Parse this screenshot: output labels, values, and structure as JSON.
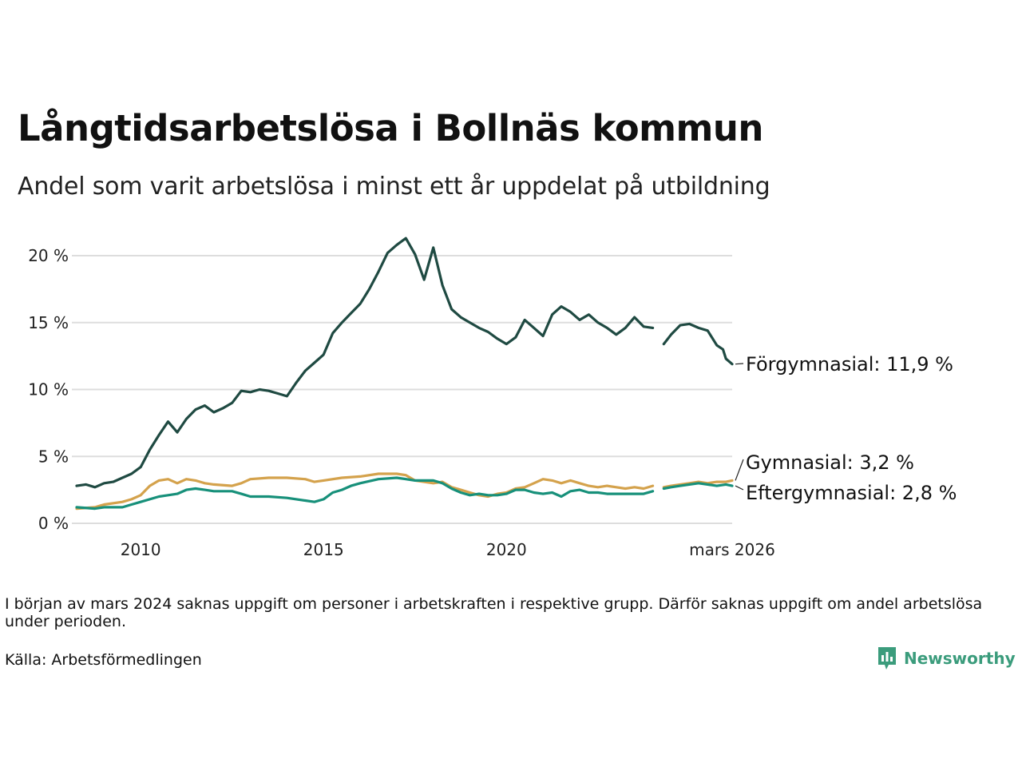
{
  "title": "Långtidsarbetslösa i Bollnäs kommun",
  "subtitle": "Andel som varit arbetslösa i minst ett år uppdelat på utbildning",
  "note": "I början av mars 2024 saknas uppgift om personer i arbetskraften i respektive grupp. Därför saknas uppgift om andel arbetslösa under perioden.",
  "source": "Källa: Arbetsförmedlingen",
  "brand": "Newsworthy",
  "colors": {
    "forgymnasial": "#1f4a42",
    "gymnasial": "#d4a24c",
    "eftergymnasial": "#17907a",
    "grid": "#dddddd",
    "brand": "#3b9c7c"
  },
  "chart_data": {
    "type": "line",
    "title": "Långtidsarbetslösa i Bollnäs kommun",
    "ylabel": "",
    "xlabel": "",
    "xlim": [
      2008.25,
      2026.17
    ],
    "ylim": [
      0,
      22
    ],
    "y_ticks": [
      0,
      5,
      10,
      15,
      20
    ],
    "y_tick_labels": [
      "0 %",
      "5 %",
      "10 %",
      "15 %",
      "20 %"
    ],
    "x_ticks": [
      2010,
      2015,
      2020,
      2026.17
    ],
    "x_tick_labels": [
      "2010",
      "2015",
      "2020",
      "mars 2026"
    ],
    "gap": [
      2024.0,
      2024.3
    ],
    "series": [
      {
        "key": "forgymnasial",
        "name": "Förgymnasial",
        "end_label": "Förgymnasial: 11,9 %",
        "last_value": 11.9,
        "points": [
          [
            2008.25,
            2.8
          ],
          [
            2008.5,
            2.9
          ],
          [
            2008.75,
            2.7
          ],
          [
            2009.0,
            3.0
          ],
          [
            2009.25,
            3.1
          ],
          [
            2009.5,
            3.4
          ],
          [
            2009.75,
            3.7
          ],
          [
            2010.0,
            4.2
          ],
          [
            2010.25,
            5.5
          ],
          [
            2010.5,
            6.6
          ],
          [
            2010.75,
            7.6
          ],
          [
            2011.0,
            6.8
          ],
          [
            2011.25,
            7.8
          ],
          [
            2011.5,
            8.5
          ],
          [
            2011.75,
            8.8
          ],
          [
            2012.0,
            8.3
          ],
          [
            2012.25,
            8.6
          ],
          [
            2012.5,
            9.0
          ],
          [
            2012.75,
            9.9
          ],
          [
            2013.0,
            9.8
          ],
          [
            2013.25,
            10.0
          ],
          [
            2013.5,
            9.9
          ],
          [
            2013.75,
            9.7
          ],
          [
            2014.0,
            9.5
          ],
          [
            2014.25,
            10.5
          ],
          [
            2014.5,
            11.4
          ],
          [
            2014.75,
            12.0
          ],
          [
            2015.0,
            12.6
          ],
          [
            2015.25,
            14.2
          ],
          [
            2015.5,
            15.0
          ],
          [
            2015.75,
            15.7
          ],
          [
            2016.0,
            16.4
          ],
          [
            2016.25,
            17.5
          ],
          [
            2016.5,
            18.8
          ],
          [
            2016.75,
            20.2
          ],
          [
            2017.0,
            20.8
          ],
          [
            2017.25,
            21.3
          ],
          [
            2017.5,
            20.1
          ],
          [
            2017.75,
            18.2
          ],
          [
            2018.0,
            20.6
          ],
          [
            2018.25,
            17.8
          ],
          [
            2018.5,
            16.0
          ],
          [
            2018.75,
            15.4
          ],
          [
            2019.0,
            15.0
          ],
          [
            2019.25,
            14.6
          ],
          [
            2019.5,
            14.3
          ],
          [
            2019.75,
            13.8
          ],
          [
            2020.0,
            13.4
          ],
          [
            2020.25,
            13.9
          ],
          [
            2020.5,
            15.2
          ],
          [
            2020.75,
            14.6
          ],
          [
            2021.0,
            14.0
          ],
          [
            2021.25,
            15.6
          ],
          [
            2021.5,
            16.2
          ],
          [
            2021.75,
            15.8
          ],
          [
            2022.0,
            15.2
          ],
          [
            2022.25,
            15.6
          ],
          [
            2022.5,
            15.0
          ],
          [
            2022.75,
            14.6
          ],
          [
            2023.0,
            14.1
          ],
          [
            2023.25,
            14.6
          ],
          [
            2023.5,
            15.4
          ],
          [
            2023.75,
            14.7
          ],
          [
            2024.0,
            14.6
          ],
          [
            2024.3,
            13.4
          ],
          [
            2024.5,
            14.1
          ],
          [
            2024.75,
            14.8
          ],
          [
            2025.0,
            14.9
          ],
          [
            2025.25,
            14.6
          ],
          [
            2025.5,
            14.4
          ],
          [
            2025.75,
            13.3
          ],
          [
            2025.92,
            13.0
          ],
          [
            2026.0,
            12.3
          ],
          [
            2026.17,
            11.9
          ]
        ]
      },
      {
        "key": "gymnasial",
        "name": "Gymnasial",
        "end_label": "Gymnasial:  3,2 %",
        "last_value": 3.2,
        "points": [
          [
            2008.25,
            1.1
          ],
          [
            2008.75,
            1.2
          ],
          [
            2009.0,
            1.4
          ],
          [
            2009.5,
            1.6
          ],
          [
            2009.75,
            1.8
          ],
          [
            2010.0,
            2.1
          ],
          [
            2010.25,
            2.8
          ],
          [
            2010.5,
            3.2
          ],
          [
            2010.75,
            3.3
          ],
          [
            2011.0,
            3.0
          ],
          [
            2011.25,
            3.3
          ],
          [
            2011.5,
            3.2
          ],
          [
            2011.75,
            3.0
          ],
          [
            2012.0,
            2.9
          ],
          [
            2012.5,
            2.8
          ],
          [
            2012.75,
            3.0
          ],
          [
            2013.0,
            3.3
          ],
          [
            2013.5,
            3.4
          ],
          [
            2014.0,
            3.4
          ],
          [
            2014.5,
            3.3
          ],
          [
            2014.75,
            3.1
          ],
          [
            2015.0,
            3.2
          ],
          [
            2015.5,
            3.4
          ],
          [
            2016.0,
            3.5
          ],
          [
            2016.5,
            3.7
          ],
          [
            2017.0,
            3.7
          ],
          [
            2017.25,
            3.6
          ],
          [
            2017.5,
            3.2
          ],
          [
            2018.0,
            3.0
          ],
          [
            2018.25,
            3.1
          ],
          [
            2018.5,
            2.7
          ],
          [
            2018.75,
            2.5
          ],
          [
            2019.0,
            2.3
          ],
          [
            2019.25,
            2.1
          ],
          [
            2019.5,
            2.0
          ],
          [
            2019.75,
            2.2
          ],
          [
            2020.0,
            2.3
          ],
          [
            2020.25,
            2.6
          ],
          [
            2020.5,
            2.7
          ],
          [
            2020.75,
            3.0
          ],
          [
            2021.0,
            3.3
          ],
          [
            2021.25,
            3.2
          ],
          [
            2021.5,
            3.0
          ],
          [
            2021.75,
            3.2
          ],
          [
            2022.0,
            3.0
          ],
          [
            2022.25,
            2.8
          ],
          [
            2022.5,
            2.7
          ],
          [
            2022.75,
            2.8
          ],
          [
            2023.0,
            2.7
          ],
          [
            2023.25,
            2.6
          ],
          [
            2023.5,
            2.7
          ],
          [
            2023.75,
            2.6
          ],
          [
            2024.0,
            2.8
          ],
          [
            2024.3,
            2.7
          ],
          [
            2024.5,
            2.8
          ],
          [
            2024.75,
            2.9
          ],
          [
            2025.0,
            3.0
          ],
          [
            2025.25,
            3.1
          ],
          [
            2025.5,
            3.0
          ],
          [
            2025.75,
            3.1
          ],
          [
            2026.0,
            3.1
          ],
          [
            2026.17,
            3.2
          ]
        ]
      },
      {
        "key": "eftergymnasial",
        "name": "Eftergymnasial",
        "end_label": "Eftergymnasial:  2,8 %",
        "last_value": 2.8,
        "points": [
          [
            2008.25,
            1.2
          ],
          [
            2008.75,
            1.1
          ],
          [
            2009.0,
            1.2
          ],
          [
            2009.5,
            1.2
          ],
          [
            2009.75,
            1.4
          ],
          [
            2010.0,
            1.6
          ],
          [
            2010.5,
            2.0
          ],
          [
            2010.75,
            2.1
          ],
          [
            2011.0,
            2.2
          ],
          [
            2011.25,
            2.5
          ],
          [
            2011.5,
            2.6
          ],
          [
            2011.75,
            2.5
          ],
          [
            2012.0,
            2.4
          ],
          [
            2012.5,
            2.4
          ],
          [
            2012.75,
            2.2
          ],
          [
            2013.0,
            2.0
          ],
          [
            2013.5,
            2.0
          ],
          [
            2014.0,
            1.9
          ],
          [
            2014.5,
            1.7
          ],
          [
            2014.75,
            1.6
          ],
          [
            2015.0,
            1.8
          ],
          [
            2015.25,
            2.3
          ],
          [
            2015.5,
            2.5
          ],
          [
            2015.75,
            2.8
          ],
          [
            2016.0,
            3.0
          ],
          [
            2016.5,
            3.3
          ],
          [
            2017.0,
            3.4
          ],
          [
            2017.5,
            3.2
          ],
          [
            2018.0,
            3.2
          ],
          [
            2018.25,
            3.0
          ],
          [
            2018.5,
            2.6
          ],
          [
            2018.75,
            2.3
          ],
          [
            2019.0,
            2.1
          ],
          [
            2019.25,
            2.2
          ],
          [
            2019.5,
            2.1
          ],
          [
            2019.75,
            2.1
          ],
          [
            2020.0,
            2.2
          ],
          [
            2020.25,
            2.5
          ],
          [
            2020.5,
            2.5
          ],
          [
            2020.75,
            2.3
          ],
          [
            2021.0,
            2.2
          ],
          [
            2021.25,
            2.3
          ],
          [
            2021.5,
            2.0
          ],
          [
            2021.75,
            2.4
          ],
          [
            2022.0,
            2.5
          ],
          [
            2022.25,
            2.3
          ],
          [
            2022.5,
            2.3
          ],
          [
            2022.75,
            2.2
          ],
          [
            2023.0,
            2.2
          ],
          [
            2023.5,
            2.2
          ],
          [
            2023.75,
            2.2
          ],
          [
            2024.0,
            2.4
          ],
          [
            2024.3,
            2.6
          ],
          [
            2024.5,
            2.7
          ],
          [
            2024.75,
            2.8
          ],
          [
            2025.0,
            2.9
          ],
          [
            2025.25,
            3.0
          ],
          [
            2025.5,
            2.9
          ],
          [
            2025.75,
            2.8
          ],
          [
            2026.0,
            2.9
          ],
          [
            2026.17,
            2.8
          ]
        ]
      }
    ]
  }
}
